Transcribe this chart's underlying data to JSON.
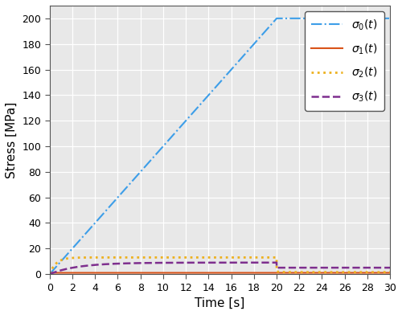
{
  "xlabel": "Time [s]",
  "ylabel": "Stress [MPa]",
  "xlim": [
    0,
    30
  ],
  "ylim": [
    0,
    210
  ],
  "xticks": [
    0,
    2,
    4,
    6,
    8,
    10,
    12,
    14,
    16,
    18,
    20,
    22,
    24,
    26,
    28,
    30
  ],
  "yticks": [
    0,
    20,
    40,
    60,
    80,
    100,
    120,
    140,
    160,
    180,
    200
  ],
  "sigma0_color": "#3D9EE8",
  "sigma1_color": "#D95319",
  "sigma2_color": "#EDB120",
  "sigma3_color": "#7E2F8E",
  "axes_bg_color": "#E8E8E8",
  "fig_bg_color": "#FFFFFF",
  "grid_color": "#FFFFFF",
  "sigma0_lw": 1.5,
  "sigma1_lw": 1.5,
  "sigma2_lw": 2.0,
  "sigma3_lw": 1.8
}
